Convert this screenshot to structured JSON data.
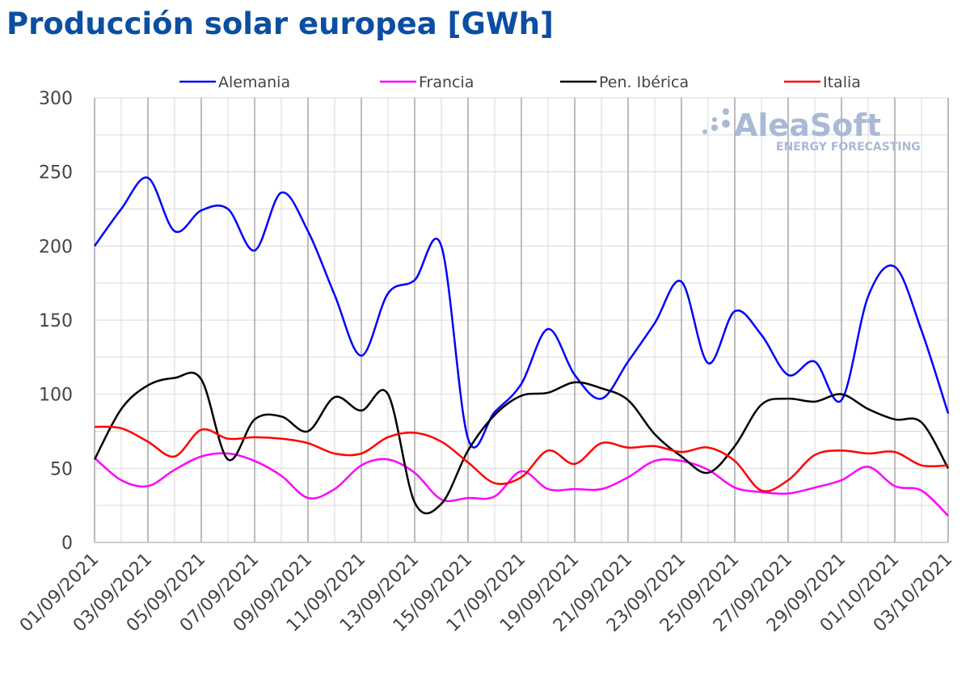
{
  "title": "Producción solar europea [GWh]",
  "logo": {
    "name": "AleaSoft",
    "tagline": "ENERGY FORECASTING"
  },
  "chart_data": {
    "type": "line",
    "title": "Producción solar europea [GWh]",
    "xlabel": "",
    "ylabel": "",
    "ylim": [
      0,
      300
    ],
    "yticks": [
      0,
      50,
      100,
      150,
      200,
      250,
      300
    ],
    "grid": true,
    "legend_position": "top",
    "x": [
      "01/09/2021",
      "02/09/2021",
      "03/09/2021",
      "04/09/2021",
      "05/09/2021",
      "06/09/2021",
      "07/09/2021",
      "08/09/2021",
      "09/09/2021",
      "10/09/2021",
      "11/09/2021",
      "12/09/2021",
      "13/09/2021",
      "14/09/2021",
      "15/09/2021",
      "16/09/2021",
      "17/09/2021",
      "18/09/2021",
      "19/09/2021",
      "20/09/2021",
      "21/09/2021",
      "22/09/2021",
      "23/09/2021",
      "24/09/2021",
      "25/09/2021",
      "26/09/2021",
      "27/09/2021",
      "28/09/2021",
      "29/09/2021",
      "30/09/2021",
      "01/10/2021",
      "02/10/2021",
      "03/10/2021"
    ],
    "xtick_labels": [
      "01/09/2021",
      "03/09/2021",
      "05/09/2021",
      "07/09/2021",
      "09/09/2021",
      "11/09/2021",
      "13/09/2021",
      "15/09/2021",
      "17/09/2021",
      "19/09/2021",
      "21/09/2021",
      "23/09/2021",
      "25/09/2021",
      "27/09/2021",
      "29/09/2021",
      "01/10/2021",
      "03/10/2021"
    ],
    "series": [
      {
        "name": "Alemania",
        "color": "#0000ff",
        "values": [
          200,
          225,
          246,
          210,
          224,
          225,
          197,
          236,
          210,
          167,
          126,
          168,
          177,
          200,
          70,
          88,
          107,
          144,
          113,
          97,
          122,
          148,
          176,
          121,
          156,
          140,
          113,
          122,
          96,
          166,
          186,
          143,
          87
        ]
      },
      {
        "name": "Francia",
        "color": "#ff00ff",
        "values": [
          57,
          42,
          38,
          49,
          58,
          60,
          55,
          45,
          30,
          36,
          52,
          56,
          47,
          29,
          30,
          31,
          48,
          36,
          36,
          36,
          44,
          55,
          55,
          49,
          37,
          34,
          33,
          37,
          42,
          51,
          38,
          35,
          18
        ]
      },
      {
        "name": "Pen. Ibérica",
        "color": "#000000",
        "values": [
          56,
          90,
          106,
          111,
          110,
          56,
          83,
          85,
          75,
          98,
          89,
          100,
          27,
          26,
          62,
          86,
          99,
          101,
          108,
          104,
          96,
          73,
          58,
          47,
          65,
          93,
          97,
          95,
          100,
          90,
          83,
          81,
          50
        ]
      },
      {
        "name": "Italia",
        "color": "#ff0000",
        "values": [
          78,
          77,
          68,
          58,
          76,
          70,
          71,
          70,
          67,
          60,
          60,
          71,
          74,
          68,
          54,
          40,
          44,
          62,
          53,
          67,
          64,
          65,
          61,
          64,
          55,
          35,
          42,
          59,
          62,
          60,
          61,
          52,
          52
        ]
      }
    ]
  }
}
